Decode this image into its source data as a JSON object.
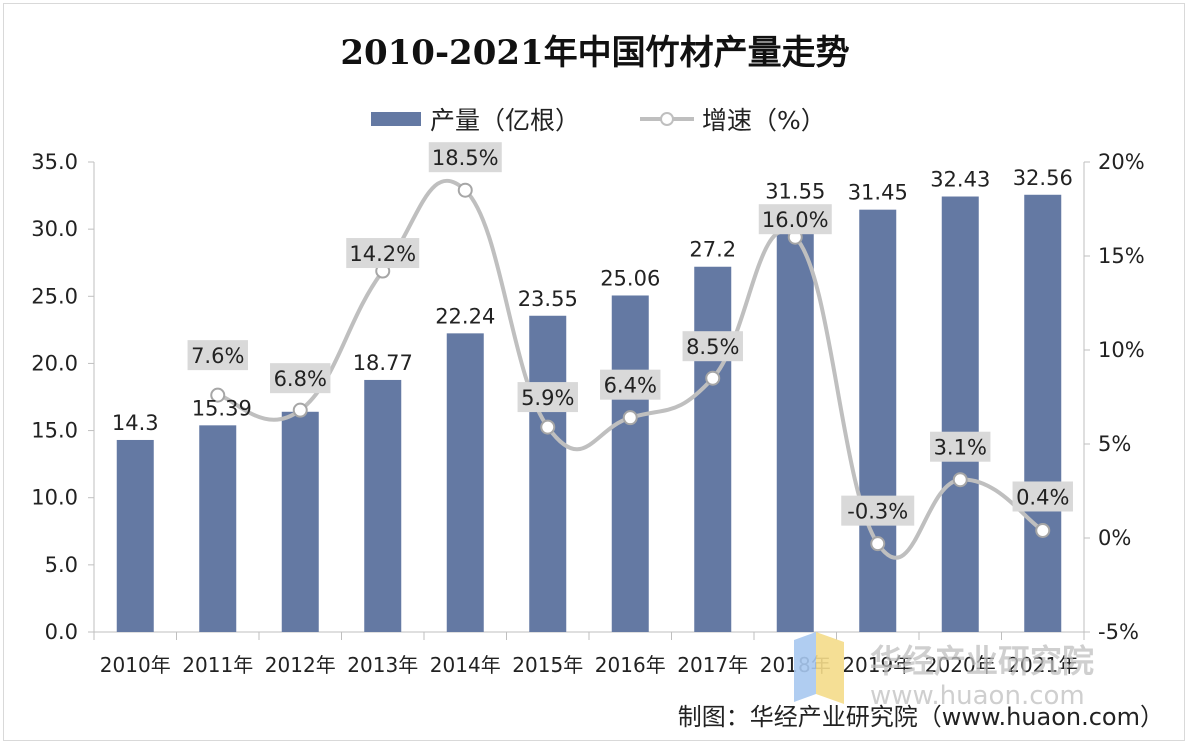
{
  "chart_data": {
    "type": "bar",
    "title": "2010-2021年中国竹材产量走势",
    "categories": [
      "2010年",
      "2011年",
      "2012年",
      "2013年",
      "2014年",
      "2015年",
      "2016年",
      "2017年",
      "2018年",
      "2019年",
      "2020年",
      "2021年"
    ],
    "series": [
      {
        "name": "产量（亿根）",
        "type": "bar",
        "axis": "left",
        "values": [
          14.3,
          15.39,
          16.4,
          18.77,
          22.24,
          23.55,
          25.06,
          27.2,
          31.55,
          31.45,
          32.43,
          32.56
        ],
        "labels": [
          "14.3",
          "15.39",
          "",
          "18.77",
          "22.24",
          "23.55",
          "25.06",
          "27.2",
          "31.55",
          "31.45",
          "32.43",
          "32.56"
        ]
      },
      {
        "name": "增速（%）",
        "type": "line",
        "axis": "right",
        "values": [
          null,
          7.6,
          6.8,
          14.2,
          18.5,
          5.9,
          6.4,
          8.5,
          16.0,
          -0.3,
          3.1,
          0.4
        ],
        "labels": [
          "",
          "7.6%",
          "6.8%",
          "14.2%",
          "18.5%",
          "5.9%",
          "6.4%",
          "8.5%",
          "16.0%",
          "-0.3%",
          "3.1%",
          "0.4%"
        ]
      }
    ],
    "left_axis": {
      "min": 0,
      "max": 35,
      "step": 5,
      "ticks": [
        "0.0",
        "5.0",
        "10.0",
        "15.0",
        "20.0",
        "25.0",
        "30.0",
        "35.0"
      ]
    },
    "right_axis": {
      "min": -5,
      "max": 20,
      "step": 5,
      "ticks": [
        "-5%",
        "0%",
        "5%",
        "10%",
        "15%",
        "20%"
      ]
    },
    "legend_position": "top",
    "colors": {
      "bar": "#6479a3",
      "line": "#bfbfbf",
      "label_box": "#d9d9d9"
    }
  },
  "source": "制图：华经产业研究院（www.huaon.com）",
  "watermark": {
    "name": "华经产业研究院",
    "url": "www.huaon.com"
  }
}
